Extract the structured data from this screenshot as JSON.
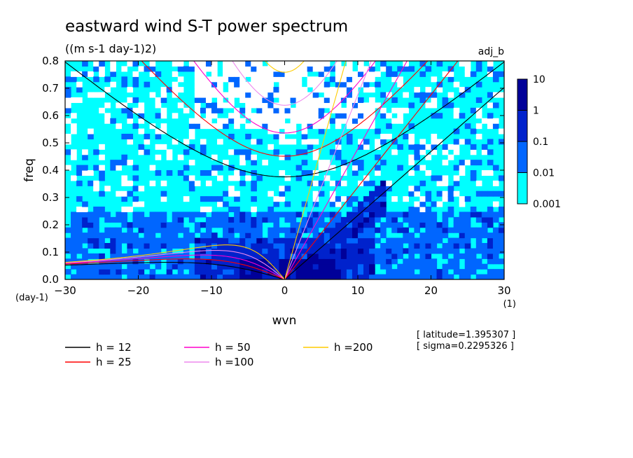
{
  "chart_data": {
    "type": "heatmap",
    "title": "eastward wind S-T power spectrum",
    "subtitle": "((m s-1 day-1)2)",
    "tag": "adj_b",
    "xlabel": "wvn",
    "ylabel": "freq",
    "x_unit": "(1)",
    "y_unit": "(day-1)",
    "xlim": [
      -30,
      30
    ],
    "ylim": [
      0,
      0.8
    ],
    "x_ticks": [
      -30,
      -20,
      -10,
      0,
      10,
      20,
      30
    ],
    "x_tick_labels": [
      "−30",
      "−20",
      "−10",
      "0",
      "10",
      "20",
      "30"
    ],
    "y_ticks": [
      0,
      0.1,
      0.2,
      0.3,
      0.4,
      0.5,
      0.6,
      0.7,
      0.8
    ],
    "y_tick_labels": [
      "0.0",
      "0.1",
      "0.2",
      "0.3",
      "0.4",
      "0.5",
      "0.6",
      "0.7",
      "0.8"
    ],
    "colorbar": {
      "levels": [
        0.001,
        0.01,
        0.1,
        1,
        10
      ],
      "labels": [
        "0.001",
        "0.01",
        "0.1",
        "1",
        "10"
      ],
      "colors": [
        "#00ffff",
        "#0066ff",
        "#0022cc",
        "#000099",
        "#5500aa"
      ]
    },
    "dispersion_curves": [
      {
        "h": 12,
        "label": "h = 12",
        "color": "#000000"
      },
      {
        "h": 25,
        "label": "h = 25",
        "color": "#ff0000"
      },
      {
        "h": 50,
        "label": "h = 50",
        "color": "#ff00cc"
      },
      {
        "h": 100,
        "label": "h =100",
        "color": "#ee88ee"
      },
      {
        "h": 200,
        "label": "h =200",
        "color": "#ffcc00"
      }
    ],
    "annotations": [
      "[ latitude=1.395307 ]",
      "[ sigma=0.2295326 ]"
    ]
  }
}
